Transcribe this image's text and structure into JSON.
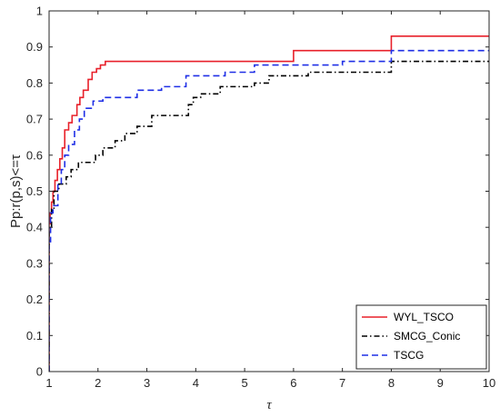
{
  "chart_data": {
    "type": "line",
    "xlabel": "τ",
    "ylabel": "Pp:r(p,s)<=τ",
    "xlim": [
      1,
      10
    ],
    "ylim": [
      0,
      1
    ],
    "x_ticks": [
      1,
      2,
      3,
      4,
      5,
      6,
      7,
      8,
      9,
      10
    ],
    "y_ticks": [
      0,
      0.1,
      0.2,
      0.3,
      0.4,
      0.5,
      0.6,
      0.7,
      0.8,
      0.9,
      1
    ],
    "x_tick_labels": [
      "1",
      "2",
      "3",
      "4",
      "5",
      "6",
      "7",
      "8",
      "9",
      "10"
    ],
    "y_tick_labels": [
      "0",
      "0.1",
      "0.2",
      "0.3",
      "0.4",
      "0.5",
      "0.6",
      "0.7",
      "0.8",
      "0.9",
      "1"
    ],
    "grid": false,
    "legend_position": "bottom-right",
    "series": [
      {
        "name": "WYL_TSCO",
        "color": "#e8202a",
        "dash": "solid",
        "points": [
          [
            1,
            0.0
          ],
          [
            1.0,
            0.41
          ],
          [
            1.02,
            0.41
          ],
          [
            1.02,
            0.44
          ],
          [
            1.05,
            0.44
          ],
          [
            1.05,
            0.47
          ],
          [
            1.08,
            0.47
          ],
          [
            1.08,
            0.5
          ],
          [
            1.12,
            0.5
          ],
          [
            1.12,
            0.53
          ],
          [
            1.17,
            0.53
          ],
          [
            1.17,
            0.56
          ],
          [
            1.22,
            0.56
          ],
          [
            1.22,
            0.59
          ],
          [
            1.27,
            0.59
          ],
          [
            1.27,
            0.62
          ],
          [
            1.32,
            0.62
          ],
          [
            1.32,
            0.67
          ],
          [
            1.4,
            0.67
          ],
          [
            1.4,
            0.69
          ],
          [
            1.47,
            0.69
          ],
          [
            1.47,
            0.71
          ],
          [
            1.57,
            0.71
          ],
          [
            1.57,
            0.74
          ],
          [
            1.63,
            0.74
          ],
          [
            1.63,
            0.76
          ],
          [
            1.7,
            0.76
          ],
          [
            1.7,
            0.78
          ],
          [
            1.8,
            0.78
          ],
          [
            1.8,
            0.81
          ],
          [
            1.88,
            0.81
          ],
          [
            1.88,
            0.83
          ],
          [
            1.97,
            0.83
          ],
          [
            1.97,
            0.84
          ],
          [
            2.05,
            0.84
          ],
          [
            2.05,
            0.85
          ],
          [
            2.15,
            0.85
          ],
          [
            2.15,
            0.86
          ],
          [
            6.0,
            0.86
          ],
          [
            6.0,
            0.89
          ],
          [
            8.0,
            0.89
          ],
          [
            8.0,
            0.93
          ],
          [
            10.0,
            0.93
          ]
        ]
      },
      {
        "name": "SMCG_Conic",
        "color": "#000000",
        "dash": "dashdot",
        "points": [
          [
            1,
            0.0
          ],
          [
            1.0,
            0.4
          ],
          [
            1.05,
            0.4
          ],
          [
            1.05,
            0.45
          ],
          [
            1.1,
            0.45
          ],
          [
            1.1,
            0.5
          ],
          [
            1.2,
            0.5
          ],
          [
            1.2,
            0.52
          ],
          [
            1.35,
            0.52
          ],
          [
            1.35,
            0.54
          ],
          [
            1.45,
            0.54
          ],
          [
            1.45,
            0.56
          ],
          [
            1.6,
            0.56
          ],
          [
            1.6,
            0.58
          ],
          [
            1.95,
            0.58
          ],
          [
            1.95,
            0.6
          ],
          [
            2.1,
            0.6
          ],
          [
            2.1,
            0.62
          ],
          [
            2.35,
            0.62
          ],
          [
            2.35,
            0.64
          ],
          [
            2.55,
            0.64
          ],
          [
            2.55,
            0.66
          ],
          [
            2.8,
            0.66
          ],
          [
            2.8,
            0.68
          ],
          [
            3.1,
            0.68
          ],
          [
            3.1,
            0.71
          ],
          [
            3.85,
            0.71
          ],
          [
            3.85,
            0.74
          ],
          [
            3.95,
            0.74
          ],
          [
            3.95,
            0.76
          ],
          [
            4.1,
            0.76
          ],
          [
            4.1,
            0.77
          ],
          [
            4.5,
            0.77
          ],
          [
            4.5,
            0.79
          ],
          [
            5.2,
            0.79
          ],
          [
            5.2,
            0.8
          ],
          [
            5.5,
            0.8
          ],
          [
            5.5,
            0.82
          ],
          [
            6.3,
            0.82
          ],
          [
            6.3,
            0.83
          ],
          [
            8.0,
            0.83
          ],
          [
            8.0,
            0.86
          ],
          [
            10.0,
            0.86
          ]
        ]
      },
      {
        "name": "TSCG",
        "color": "#1f2fe6",
        "dash": "dash",
        "points": [
          [
            1,
            0.0
          ],
          [
            1.0,
            0.36
          ],
          [
            1.03,
            0.36
          ],
          [
            1.03,
            0.44
          ],
          [
            1.08,
            0.44
          ],
          [
            1.08,
            0.46
          ],
          [
            1.18,
            0.46
          ],
          [
            1.18,
            0.52
          ],
          [
            1.25,
            0.52
          ],
          [
            1.25,
            0.56
          ],
          [
            1.32,
            0.56
          ],
          [
            1.32,
            0.6
          ],
          [
            1.4,
            0.6
          ],
          [
            1.4,
            0.63
          ],
          [
            1.52,
            0.63
          ],
          [
            1.52,
            0.67
          ],
          [
            1.62,
            0.67
          ],
          [
            1.62,
            0.7
          ],
          [
            1.72,
            0.7
          ],
          [
            1.72,
            0.73
          ],
          [
            1.9,
            0.73
          ],
          [
            1.9,
            0.75
          ],
          [
            2.1,
            0.75
          ],
          [
            2.1,
            0.76
          ],
          [
            2.8,
            0.76
          ],
          [
            2.8,
            0.78
          ],
          [
            3.3,
            0.78
          ],
          [
            3.3,
            0.79
          ],
          [
            3.8,
            0.79
          ],
          [
            3.8,
            0.82
          ],
          [
            4.6,
            0.82
          ],
          [
            4.6,
            0.83
          ],
          [
            5.2,
            0.83
          ],
          [
            5.2,
            0.85
          ],
          [
            7.0,
            0.85
          ],
          [
            7.0,
            0.86
          ],
          [
            8.0,
            0.86
          ],
          [
            8.0,
            0.89
          ],
          [
            10.0,
            0.89
          ]
        ]
      }
    ]
  }
}
